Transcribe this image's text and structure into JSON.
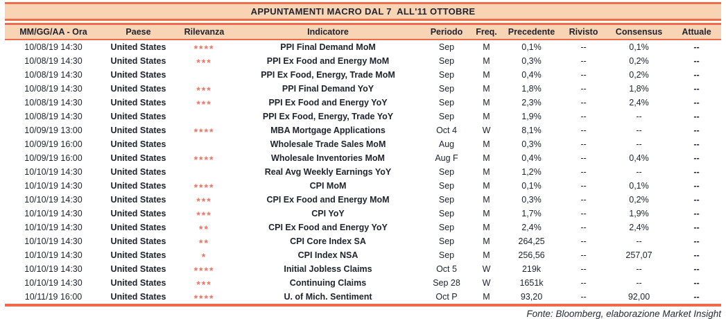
{
  "colors": {
    "accent_line": "#EE6A4A",
    "band_background": "#F8D4B5",
    "star": "#EF7161",
    "text": "#20242F"
  },
  "table": {
    "title": "APPUNTAMENTI MACRO DAL 7  ALL'11 OTTOBRE",
    "columns": [
      "MM/GG/AA - Ora",
      "Paese",
      "Rilevanza",
      "Indicatore",
      "Periodo",
      "Freq.",
      "Precedente",
      "Rivisto",
      "Consensus",
      "Attuale"
    ],
    "rows": [
      {
        "datetime": "10/08/19 14:30",
        "paese": "United States",
        "rilevanza": "****",
        "indicatore": "PPI Final Demand MoM",
        "periodo": "Sep",
        "freq": "M",
        "precedente": "0,1%",
        "rivisto": "--",
        "consensus": "0,1%",
        "attuale": "--"
      },
      {
        "datetime": "10/08/19 14:30",
        "paese": "United States",
        "rilevanza": "***",
        "indicatore": "PPI Ex Food and Energy MoM",
        "periodo": "Sep",
        "freq": "M",
        "precedente": "0,3%",
        "rivisto": "--",
        "consensus": "0,2%",
        "attuale": "--"
      },
      {
        "datetime": "10/08/19 14:30",
        "paese": "United States",
        "rilevanza": "",
        "indicatore": "PPI Ex Food, Energy, Trade MoM",
        "periodo": "Sep",
        "freq": "M",
        "precedente": "0,4%",
        "rivisto": "--",
        "consensus": "0,2%",
        "attuale": "--"
      },
      {
        "datetime": "10/08/19 14:30",
        "paese": "United States",
        "rilevanza": "***",
        "indicatore": "PPI Final Demand YoY",
        "periodo": "Sep",
        "freq": "M",
        "precedente": "1,8%",
        "rivisto": "--",
        "consensus": "1,8%",
        "attuale": "--"
      },
      {
        "datetime": "10/08/19 14:30",
        "paese": "United States",
        "rilevanza": "***",
        "indicatore": "PPI Ex Food and Energy YoY",
        "periodo": "Sep",
        "freq": "M",
        "precedente": "2,3%",
        "rivisto": "--",
        "consensus": "2,4%",
        "attuale": "--"
      },
      {
        "datetime": "10/08/19 14:30",
        "paese": "United States",
        "rilevanza": "",
        "indicatore": "PPI Ex Food, Energy, Trade YoY",
        "periodo": "Sep",
        "freq": "M",
        "precedente": "1,9%",
        "rivisto": "--",
        "consensus": "--",
        "attuale": "--"
      },
      {
        "datetime": "10/09/19 13:00",
        "paese": "United States",
        "rilevanza": "****",
        "indicatore": "MBA Mortgage Applications",
        "periodo": "Oct 4",
        "freq": "W",
        "precedente": "8,1%",
        "rivisto": "--",
        "consensus": "--",
        "attuale": "--"
      },
      {
        "datetime": "10/09/19 16:00",
        "paese": "United States",
        "rilevanza": "",
        "indicatore": "Wholesale Trade Sales MoM",
        "periodo": "Aug",
        "freq": "M",
        "precedente": "0,3%",
        "rivisto": "--",
        "consensus": "--",
        "attuale": "--"
      },
      {
        "datetime": "10/09/19 16:00",
        "paese": "United States",
        "rilevanza": "****",
        "indicatore": "Wholesale Inventories MoM",
        "periodo": "Aug F",
        "freq": "M",
        "precedente": "0,4%",
        "rivisto": "--",
        "consensus": "0,4%",
        "attuale": "--"
      },
      {
        "datetime": "10/10/19 14:30",
        "paese": "United States",
        "rilevanza": "",
        "indicatore": "Real Avg Weekly Earnings YoY",
        "periodo": "Sep",
        "freq": "M",
        "precedente": "1,2%",
        "rivisto": "--",
        "consensus": "--",
        "attuale": "--"
      },
      {
        "datetime": "10/10/19 14:30",
        "paese": "United States",
        "rilevanza": "****",
        "indicatore": "CPI MoM",
        "periodo": "Sep",
        "freq": "M",
        "precedente": "0,1%",
        "rivisto": "--",
        "consensus": "0,1%",
        "attuale": "--"
      },
      {
        "datetime": "10/10/19 14:30",
        "paese": "United States",
        "rilevanza": "***",
        "indicatore": "CPI Ex Food and Energy MoM",
        "periodo": "Sep",
        "freq": "M",
        "precedente": "0,3%",
        "rivisto": "--",
        "consensus": "0,2%",
        "attuale": "--"
      },
      {
        "datetime": "10/10/19 14:30",
        "paese": "United States",
        "rilevanza": "***",
        "indicatore": "CPI YoY",
        "periodo": "Sep",
        "freq": "M",
        "precedente": "1,7%",
        "rivisto": "--",
        "consensus": "1,9%",
        "attuale": "--"
      },
      {
        "datetime": "10/10/19 14:30",
        "paese": "United States",
        "rilevanza": "**",
        "indicatore": "CPI Ex Food and Energy YoY",
        "periodo": "Sep",
        "freq": "M",
        "precedente": "2,4%",
        "rivisto": "--",
        "consensus": "2,4%",
        "attuale": "--"
      },
      {
        "datetime": "10/10/19 14:30",
        "paese": "United States",
        "rilevanza": "**",
        "indicatore": "CPI Core Index SA",
        "periodo": "Sep",
        "freq": "M",
        "precedente": "264,25",
        "rivisto": "--",
        "consensus": "--",
        "attuale": "--"
      },
      {
        "datetime": "10/10/19 14:30",
        "paese": "United States",
        "rilevanza": "*",
        "indicatore": "CPI Index NSA",
        "periodo": "Sep",
        "freq": "M",
        "precedente": "256,56",
        "rivisto": "--",
        "consensus": "257,07",
        "attuale": "--"
      },
      {
        "datetime": "10/10/19 14:30",
        "paese": "United States",
        "rilevanza": "****",
        "indicatore": "Initial Jobless Claims",
        "periodo": "Oct 5",
        "freq": "W",
        "precedente": "219k",
        "rivisto": "--",
        "consensus": "--",
        "attuale": "--"
      },
      {
        "datetime": "10/10/19 14:30",
        "paese": "United States",
        "rilevanza": "***",
        "indicatore": "Continuing Claims",
        "periodo": "Sep 28",
        "freq": "W",
        "precedente": "1651k",
        "rivisto": "--",
        "consensus": "--",
        "attuale": "--"
      },
      {
        "datetime": "10/11/19 16:00",
        "paese": "United States",
        "rilevanza": "****",
        "indicatore": "U. of Mich. Sentiment",
        "periodo": "Oct P",
        "freq": "M",
        "precedente": "93,20",
        "rivisto": "--",
        "consensus": "92,00",
        "attuale": "--"
      }
    ],
    "footer": "Fonte: Bloomberg, elaborazione Market Insight"
  }
}
